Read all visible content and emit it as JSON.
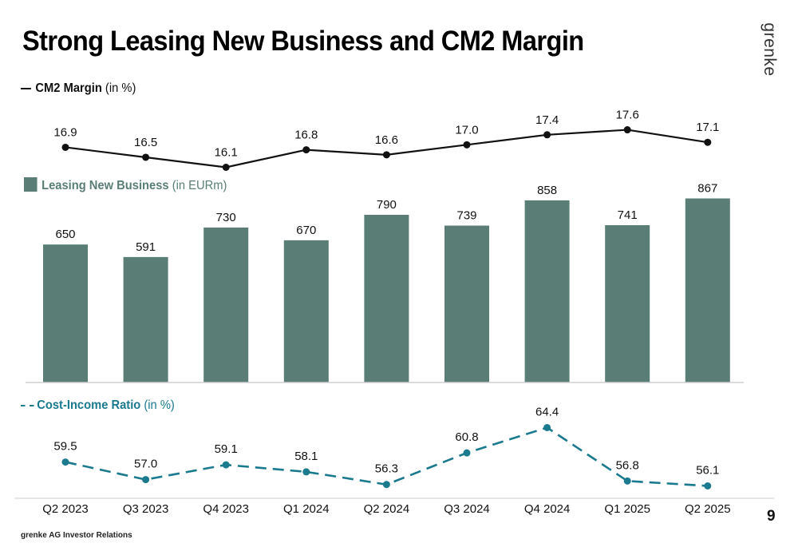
{
  "slide": {
    "title": "Strong Leasing New Business and CM2 Margin",
    "logo_text": "grenke",
    "footer": "grenke AG Investor Relations",
    "page_number": "9"
  },
  "legends": {
    "cm2_label": "CM2 Margin",
    "cm2_unit": "(in %)",
    "lnb_label": "Leasing New Business",
    "lnb_unit": "(in EURm)",
    "cir_label": "Cost-Income Ratio",
    "cir_unit": "(in %)"
  },
  "colors": {
    "bar": "#5a7e76",
    "cm2_line": "#111111",
    "cir_line": "#1b7a8e"
  },
  "chart_data": {
    "type": "bar",
    "categories": [
      "Q2 2023",
      "Q3 2023",
      "Q4 2023",
      "Q1 2024",
      "Q2 2024",
      "Q3 2024",
      "Q4 2024",
      "Q1 2025",
      "Q2 2025"
    ],
    "series": [
      {
        "name": "Leasing New Business",
        "type": "bar",
        "unit": "EURm",
        "values": [
          650,
          591,
          730,
          670,
          790,
          739,
          858,
          741,
          867
        ]
      },
      {
        "name": "CM2 Margin",
        "type": "line",
        "unit": "%",
        "values": [
          16.9,
          16.5,
          16.1,
          16.8,
          16.6,
          17.0,
          17.4,
          17.6,
          17.1
        ],
        "labels": [
          "16.9",
          "16.5",
          "16.1",
          "16.8",
          "16.6",
          "17.0",
          "17.4",
          "17.6",
          "17.1"
        ]
      },
      {
        "name": "Cost-Income Ratio",
        "type": "line",
        "style": "dashed",
        "unit": "%",
        "values": [
          59.5,
          57.0,
          59.1,
          58.1,
          56.3,
          60.8,
          64.4,
          56.8,
          56.1
        ],
        "labels": [
          "59.5",
          "57.0",
          "59.1",
          "58.1",
          "56.3",
          "60.8",
          "64.4",
          "56.8",
          "56.1"
        ]
      }
    ],
    "grid": false,
    "legend_position": "left"
  }
}
